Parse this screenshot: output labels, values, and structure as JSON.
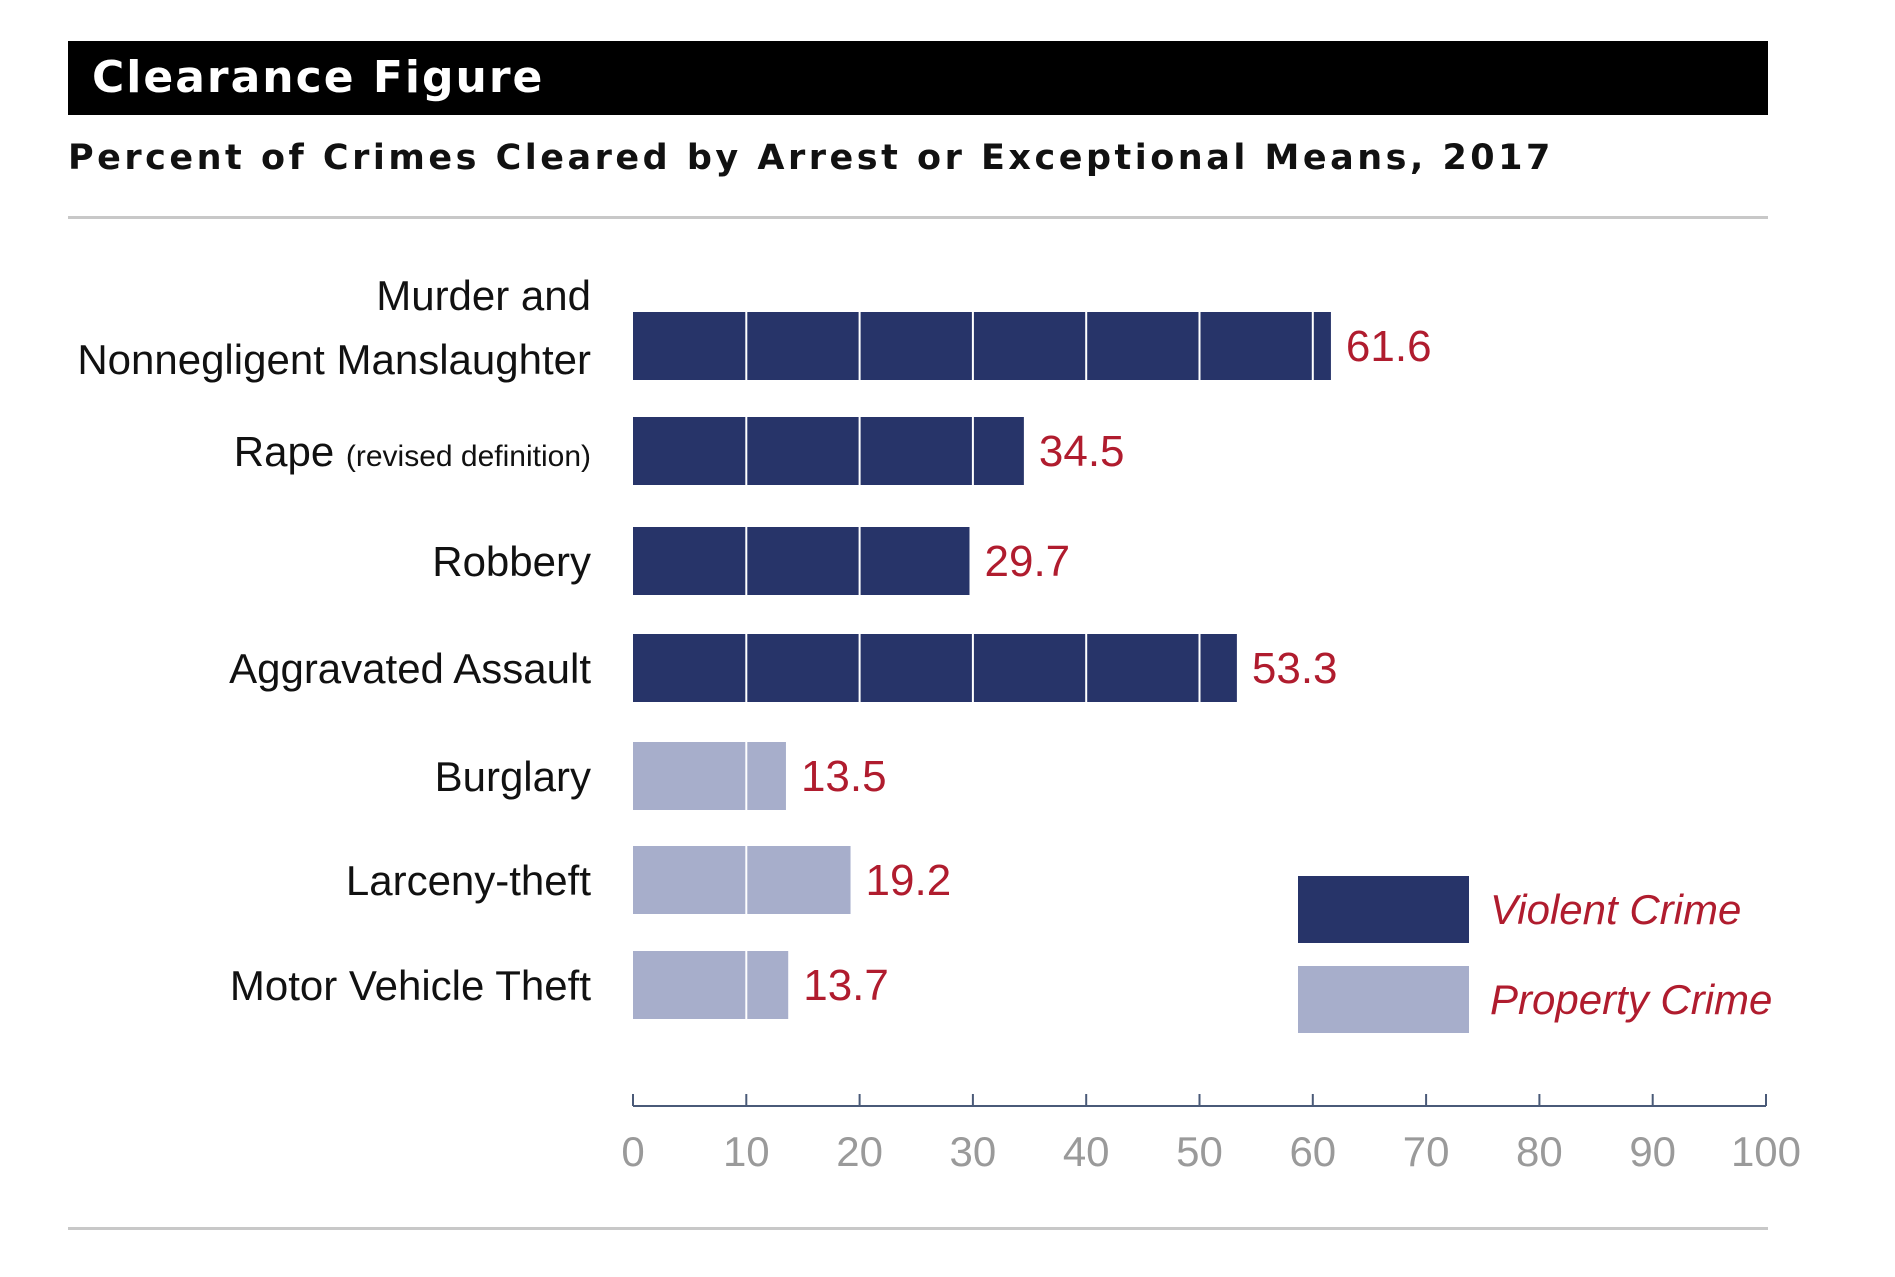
{
  "header": {
    "title": "Clearance Figure"
  },
  "chart_data": {
    "type": "bar",
    "orientation": "horizontal",
    "title": "Clearance Figure",
    "subtitle": "Percent of Crimes Cleared by Arrest or Exceptional Means, 2017",
    "categories": [
      "Murder and Nonnegligent Manslaughter",
      "Rape (revised definition)",
      "Robbery",
      "Aggravated Assault",
      "Burglary",
      "Larceny-theft",
      "Motor Vehicle Theft"
    ],
    "category_lines": [
      [
        "Murder and",
        "Nonnegligent Manslaughter"
      ],
      [
        "Rape"
      ],
      [
        "Robbery"
      ],
      [
        "Aggravated Assault"
      ],
      [
        "Burglary"
      ],
      [
        "Larceny-theft"
      ],
      [
        "Motor Vehicle Theft"
      ]
    ],
    "category_note": {
      "index": 1,
      "text": "(revised definition)"
    },
    "values": [
      61.6,
      34.5,
      29.7,
      53.3,
      13.5,
      19.2,
      13.7
    ],
    "value_labels": [
      "61.6",
      "34.5",
      "29.7",
      "53.3",
      "13.5",
      "19.2",
      "13.7"
    ],
    "groups": [
      "Violent Crime",
      "Violent Crime",
      "Violent Crime",
      "Violent Crime",
      "Property Crime",
      "Property Crime",
      "Property Crime"
    ],
    "legend": {
      "position": "bottom-right",
      "items": [
        {
          "name": "Violent Crime",
          "color": "#273469"
        },
        {
          "name": "Property Crime",
          "color": "#a7aecb"
        }
      ]
    },
    "xlim": [
      0,
      100
    ],
    "xticks": [
      0,
      10,
      20,
      30,
      40,
      50,
      60,
      70,
      80,
      90,
      100
    ],
    "grid": "white separators every 10 within bars",
    "colors": {
      "violent": "#273469",
      "property": "#a7aecb",
      "value_label": "#b01c2e",
      "axis": "#4a5a78",
      "tick_label": "#9a9a9a"
    }
  }
}
